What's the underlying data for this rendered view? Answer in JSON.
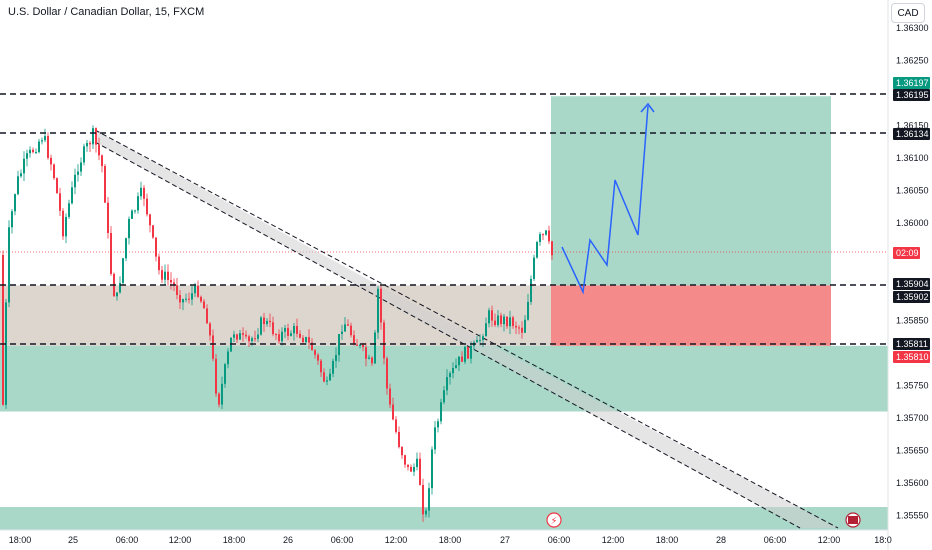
{
  "header": {
    "title": "U.S. Dollar / Canadian Dollar, 15, FXCM",
    "currency": "CAD"
  },
  "chart_data": {
    "type": "candlestick",
    "symbol": "USDCAD",
    "y_ticks": [
      "1.36300",
      "1.36250",
      "1.36150",
      "1.36100",
      "1.36050",
      "1.36000",
      "1.35850",
      "1.35750",
      "1.35700",
      "1.35650",
      "1.35600",
      "1.35550"
    ],
    "y_tick_values": [
      1.363,
      1.3625,
      1.3615,
      1.361,
      1.3605,
      1.36,
      1.3585,
      1.3575,
      1.357,
      1.3565,
      1.356,
      1.3555
    ],
    "ylim": [
      1.355,
      1.3635
    ],
    "x_ticks": [
      "18:00",
      "25",
      "06:00",
      "12:00",
      "18:00",
      "26",
      "06:00",
      "12:00",
      "18:00",
      "27",
      "06:00",
      "12:00",
      "18:00",
      "28",
      "06:00",
      "12:00",
      "18:0"
    ],
    "current_price": 1.3597,
    "countdown": "02:09",
    "levels": [
      {
        "label": "1.36197",
        "value": 1.36197,
        "color": "#089981"
      },
      {
        "label": "1.36195",
        "value": 1.36195,
        "color": "#131722"
      },
      {
        "label": "1.36134",
        "value": 1.36134,
        "color": "#131722"
      },
      {
        "label": "1.35904",
        "value": 1.35904,
        "color": "#131722"
      },
      {
        "label": "1.35902",
        "value": 1.35902,
        "color": "#131722"
      },
      {
        "label": "1.35811",
        "value": 1.35811,
        "color": "#131722"
      },
      {
        "label": "1.35810",
        "value": 1.3581,
        "color": "#f23645"
      }
    ],
    "colors": {
      "up": "#089981",
      "down": "#f23645",
      "target_zone": "#a9d8c8",
      "stop_zone": "#f58a8a",
      "demand_zone": "#a9d8c8",
      "range_zone": "#ddd6cf",
      "projection": "#2962ff",
      "channel": "#b9b9b9"
    }
  }
}
